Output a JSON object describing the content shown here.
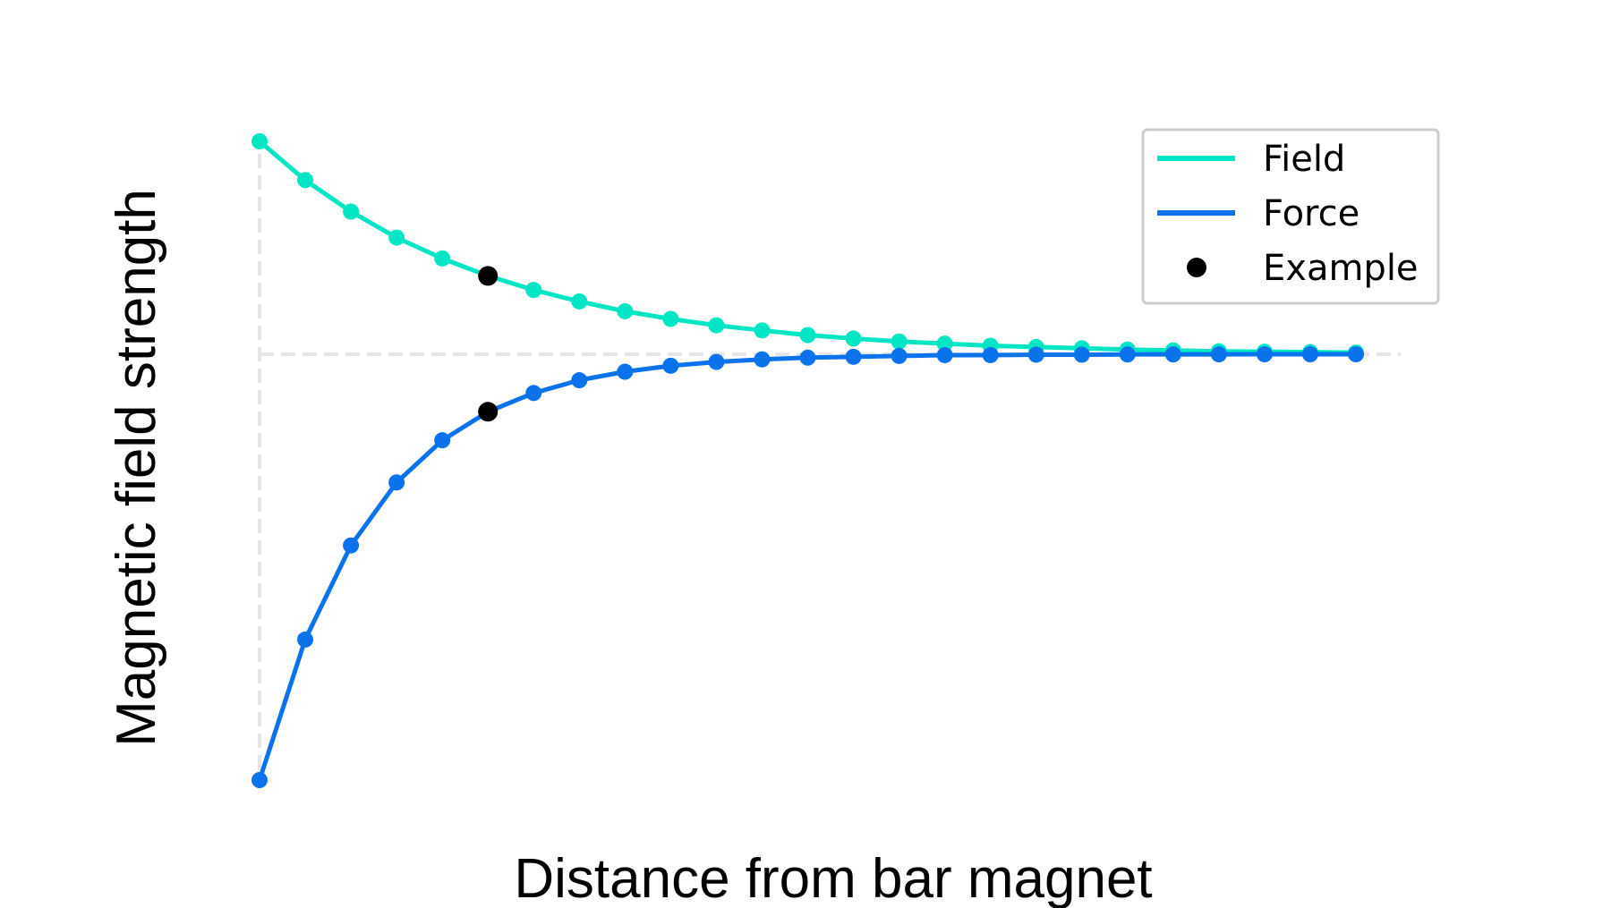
{
  "chart_data": {
    "type": "line",
    "title": "",
    "xlabel": "Distance from bar magnet",
    "ylabel": "Magnetic field strength",
    "x": [
      0,
      1,
      2,
      3,
      4,
      5,
      6,
      7,
      8,
      9,
      10,
      11,
      12,
      13,
      14,
      15,
      16,
      17,
      18,
      19,
      20,
      21,
      22,
      23,
      24
    ],
    "xlim": [
      0,
      24
    ],
    "ylim": [
      -1,
      0.5
    ],
    "grid": false,
    "reference_lines": {
      "horizontal_at_y": 0,
      "vertical_at_x": 0,
      "style": "dashed"
    },
    "series": [
      {
        "name": "Field",
        "color": "#00e5c4",
        "marker": "circle",
        "values": [
          0.5,
          0.409,
          0.335,
          0.274,
          0.225,
          0.184,
          0.151,
          0.124,
          0.101,
          0.083,
          0.068,
          0.056,
          0.045,
          0.037,
          0.03,
          0.025,
          0.02,
          0.017,
          0.014,
          0.011,
          0.009,
          0.007,
          0.006,
          0.005,
          0.004
        ]
      },
      {
        "name": "Force",
        "color": "#0a73eb",
        "marker": "circle",
        "values": [
          -1.0,
          -0.67,
          -0.449,
          -0.301,
          -0.202,
          -0.135,
          -0.091,
          -0.061,
          -0.041,
          -0.027,
          -0.018,
          -0.012,
          -0.008,
          -0.006,
          -0.004,
          -0.002,
          -0.002,
          -0.001,
          -0.001,
          -0.0005,
          -0.0003,
          -0.0002,
          -0.0001,
          -0.0001,
          0
        ]
      }
    ],
    "example_points": {
      "name": "Example",
      "color": "#000000",
      "points": [
        {
          "x": 5,
          "y": 0.184
        },
        {
          "x": 5,
          "y": -0.135
        }
      ]
    },
    "legend": {
      "position": "top-right",
      "entries": [
        {
          "label": "Field",
          "kind": "line",
          "color": "#00e5c4"
        },
        {
          "label": "Force",
          "kind": "line",
          "color": "#0a73eb"
        },
        {
          "label": "Example",
          "kind": "dot",
          "color": "#000000"
        }
      ]
    },
    "colors": {
      "reference_line": "#e6e6e6",
      "legend_border": "#cccccc"
    }
  }
}
